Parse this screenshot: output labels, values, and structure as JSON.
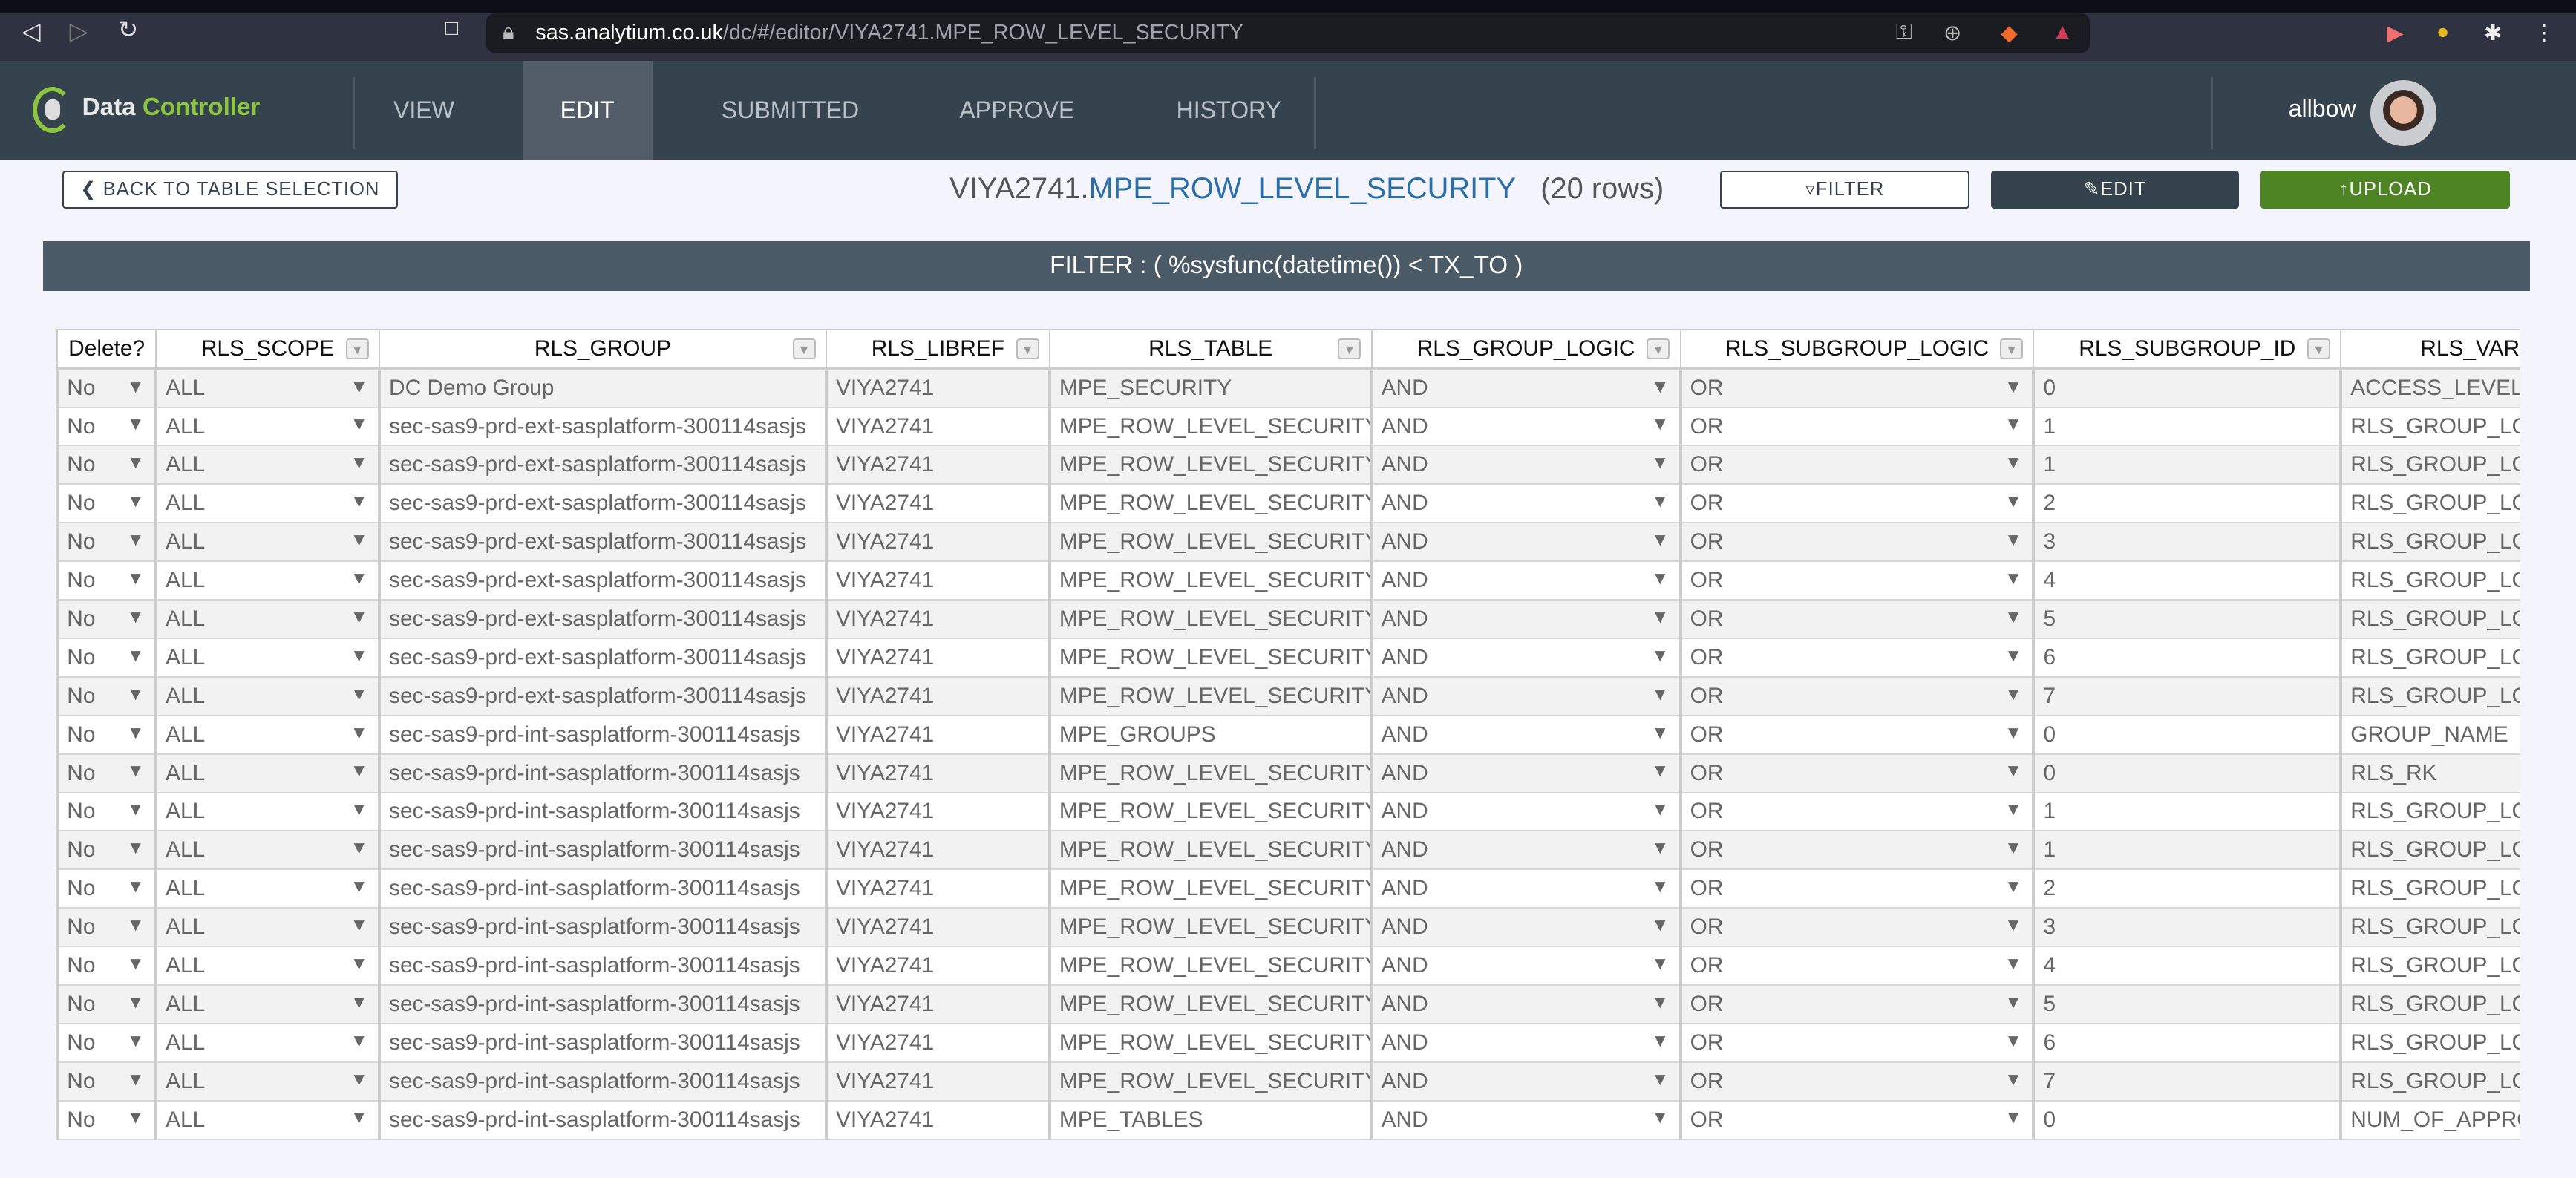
{
  "browser": {
    "url_host": "sas.analytium.co.uk",
    "url_path": "/dc/#/editor/VIYA2741.MPE_ROW_LEVEL_SECURITY"
  },
  "app": {
    "logo_a": "Data",
    "logo_b": "Controller",
    "nav": [
      "VIEW",
      "EDIT",
      "SUBMITTED",
      "APPROVE",
      "HISTORY"
    ],
    "active_tab": "EDIT",
    "user": "allbow"
  },
  "toolbar": {
    "back": "BACK TO TABLE SELECTION",
    "lib": "VIYA2741.",
    "table": "MPE_ROW_LEVEL_SECURITY",
    "rows": "(20 rows)",
    "filter": "FILTER",
    "edit": "EDIT",
    "upload": "UPLOAD"
  },
  "filter_text": "FILTER : ( %sysfunc(datetime()) < TX_TO )",
  "colors": {
    "nav": "#35434f",
    "upload": "#4f8424",
    "link": "#2a6fa8"
  },
  "table": {
    "columns": [
      "Delete?",
      "RLS_SCOPE",
      "RLS_GROUP",
      "RLS_LIBREF",
      "RLS_TABLE",
      "RLS_GROUP_LOGIC",
      "RLS_SUBGROUP_LOGIC",
      "RLS_SUBGROUP_ID",
      "RLS_VARIA"
    ],
    "rows": [
      [
        "No",
        "ALL",
        "DC Demo Group",
        "VIYA2741",
        "MPE_SECURITY",
        "AND",
        "OR",
        "0",
        "ACCESS_LEVEL"
      ],
      [
        "No",
        "ALL",
        "sec-sas9-prd-ext-sasplatform-300114sasjs",
        "VIYA2741",
        "MPE_ROW_LEVEL_SECURITY",
        "AND",
        "OR",
        "1",
        "RLS_GROUP_LO"
      ],
      [
        "No",
        "ALL",
        "sec-sas9-prd-ext-sasplatform-300114sasjs",
        "VIYA2741",
        "MPE_ROW_LEVEL_SECURITY",
        "AND",
        "OR",
        "1",
        "RLS_GROUP_LO"
      ],
      [
        "No",
        "ALL",
        "sec-sas9-prd-ext-sasplatform-300114sasjs",
        "VIYA2741",
        "MPE_ROW_LEVEL_SECURITY",
        "AND",
        "OR",
        "2",
        "RLS_GROUP_LO"
      ],
      [
        "No",
        "ALL",
        "sec-sas9-prd-ext-sasplatform-300114sasjs",
        "VIYA2741",
        "MPE_ROW_LEVEL_SECURITY",
        "AND",
        "OR",
        "3",
        "RLS_GROUP_LO"
      ],
      [
        "No",
        "ALL",
        "sec-sas9-prd-ext-sasplatform-300114sasjs",
        "VIYA2741",
        "MPE_ROW_LEVEL_SECURITY",
        "AND",
        "OR",
        "4",
        "RLS_GROUP_LO"
      ],
      [
        "No",
        "ALL",
        "sec-sas9-prd-ext-sasplatform-300114sasjs",
        "VIYA2741",
        "MPE_ROW_LEVEL_SECURITY",
        "AND",
        "OR",
        "5",
        "RLS_GROUP_LO"
      ],
      [
        "No",
        "ALL",
        "sec-sas9-prd-ext-sasplatform-300114sasjs",
        "VIYA2741",
        "MPE_ROW_LEVEL_SECURITY",
        "AND",
        "OR",
        "6",
        "RLS_GROUP_LO"
      ],
      [
        "No",
        "ALL",
        "sec-sas9-prd-ext-sasplatform-300114sasjs",
        "VIYA2741",
        "MPE_ROW_LEVEL_SECURITY",
        "AND",
        "OR",
        "7",
        "RLS_GROUP_LO"
      ],
      [
        "No",
        "ALL",
        "sec-sas9-prd-int-sasplatform-300114sasjs",
        "VIYA2741",
        "MPE_GROUPS",
        "AND",
        "OR",
        "0",
        "GROUP_NAME"
      ],
      [
        "No",
        "ALL",
        "sec-sas9-prd-int-sasplatform-300114sasjs",
        "VIYA2741",
        "MPE_ROW_LEVEL_SECURITY",
        "AND",
        "OR",
        "0",
        "RLS_RK"
      ],
      [
        "No",
        "ALL",
        "sec-sas9-prd-int-sasplatform-300114sasjs",
        "VIYA2741",
        "MPE_ROW_LEVEL_SECURITY",
        "AND",
        "OR",
        "1",
        "RLS_GROUP_LO"
      ],
      [
        "No",
        "ALL",
        "sec-sas9-prd-int-sasplatform-300114sasjs",
        "VIYA2741",
        "MPE_ROW_LEVEL_SECURITY",
        "AND",
        "OR",
        "1",
        "RLS_GROUP_LO"
      ],
      [
        "No",
        "ALL",
        "sec-sas9-prd-int-sasplatform-300114sasjs",
        "VIYA2741",
        "MPE_ROW_LEVEL_SECURITY",
        "AND",
        "OR",
        "2",
        "RLS_GROUP_LO"
      ],
      [
        "No",
        "ALL",
        "sec-sas9-prd-int-sasplatform-300114sasjs",
        "VIYA2741",
        "MPE_ROW_LEVEL_SECURITY",
        "AND",
        "OR",
        "3",
        "RLS_GROUP_LO"
      ],
      [
        "No",
        "ALL",
        "sec-sas9-prd-int-sasplatform-300114sasjs",
        "VIYA2741",
        "MPE_ROW_LEVEL_SECURITY",
        "AND",
        "OR",
        "4",
        "RLS_GROUP_LO"
      ],
      [
        "No",
        "ALL",
        "sec-sas9-prd-int-sasplatform-300114sasjs",
        "VIYA2741",
        "MPE_ROW_LEVEL_SECURITY",
        "AND",
        "OR",
        "5",
        "RLS_GROUP_LO"
      ],
      [
        "No",
        "ALL",
        "sec-sas9-prd-int-sasplatform-300114sasjs",
        "VIYA2741",
        "MPE_ROW_LEVEL_SECURITY",
        "AND",
        "OR",
        "6",
        "RLS_GROUP_LO"
      ],
      [
        "No",
        "ALL",
        "sec-sas9-prd-int-sasplatform-300114sasjs",
        "VIYA2741",
        "MPE_ROW_LEVEL_SECURITY",
        "AND",
        "OR",
        "7",
        "RLS_GROUP_LO"
      ],
      [
        "No",
        "ALL",
        "sec-sas9-prd-int-sasplatform-300114sasjs",
        "VIYA2741",
        "MPE_TABLES",
        "AND",
        "OR",
        "0",
        "NUM_OF_APPRO"
      ]
    ]
  }
}
